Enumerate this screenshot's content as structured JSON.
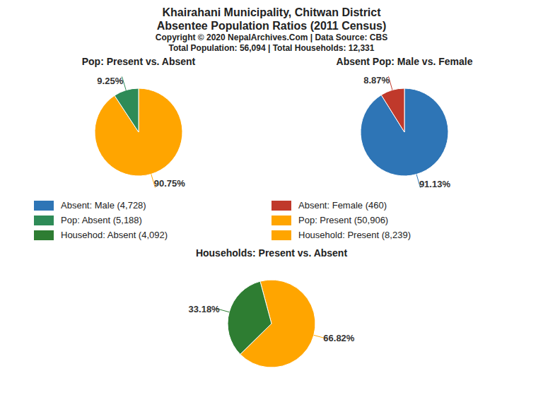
{
  "title": "Khairahani Municipality, Chitwan District",
  "subtitle": "Absentee Population Ratios (2011 Census)",
  "annotations": [
    "Copyright © 2020 NepalArchives.Com | Data Source: CBS",
    "Total Population: 56,094 | Total Households: 12,331"
  ],
  "legend_items": [
    {
      "name": "Absent: Male (4,728)",
      "color": "#2E75B6"
    },
    {
      "name": "Absent: Female (460)",
      "color": "#C0392B"
    },
    {
      "name": "Pop: Absent (5,188)",
      "color": "#2E8B57"
    },
    {
      "name": "Pop: Present (50,906)",
      "color": "#FFA500"
    },
    {
      "name": "Househod: Absent (4,092)",
      "color": "#2E7D32"
    },
    {
      "name": "Household: Present (8,239)",
      "color": "#FFA500"
    }
  ],
  "chart_data": [
    {
      "type": "pie",
      "title": "Pop: Present vs. Absent",
      "values": [
        90.75,
        9.25
      ],
      "value_labels": [
        "90.75%",
        "9.25%"
      ],
      "colors": [
        "#FFA500",
        "#2E8B57"
      ],
      "data_labels": true
    },
    {
      "type": "pie",
      "title": "Absent Pop: Male vs. Female",
      "values": [
        91.13,
        8.87
      ],
      "value_labels": [
        "91.13%",
        "8.87%"
      ],
      "colors": [
        "#2E75B6",
        "#C0392B"
      ],
      "data_labels": true
    },
    {
      "type": "pie",
      "title": "Households: Present vs. Absent",
      "values": [
        66.82,
        33.18
      ],
      "value_labels": [
        "66.82%",
        "33.18%"
      ],
      "colors": [
        "#FFA500",
        "#2E7D32"
      ],
      "data_labels": true
    }
  ]
}
